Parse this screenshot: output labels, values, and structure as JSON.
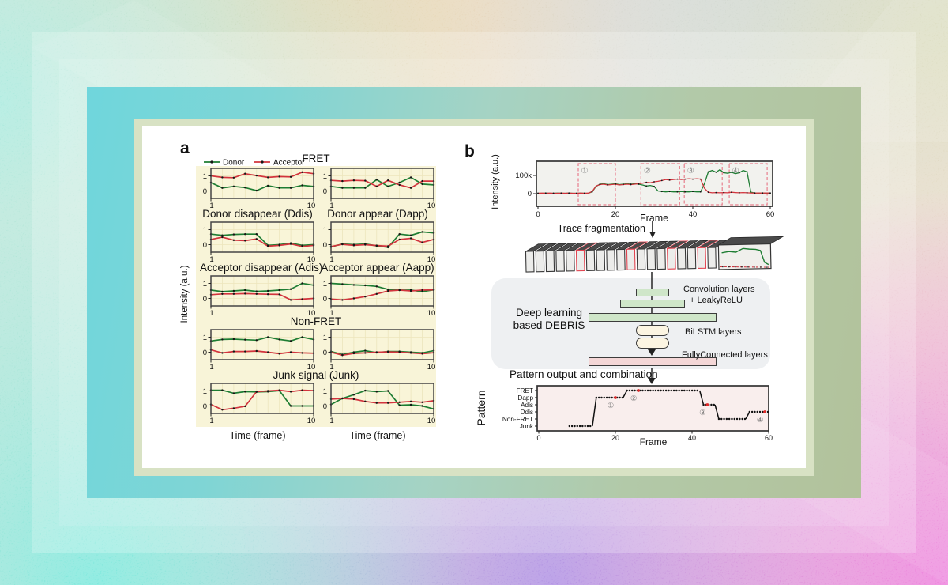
{
  "colors": {
    "donor_green": "#1e7d33",
    "acceptor_red": "#d2343d",
    "cream_bg": "#f8f4d8",
    "trace_bg": "#f2f2ee",
    "pattern_bg": "#f9eeed",
    "box_pink": "#e87f8d",
    "marker_black": "#151515",
    "red_dot": "#e02828"
  },
  "panel_a": {
    "label": "a",
    "legend": {
      "donor": "Donor",
      "acceptor": "Acceptor"
    },
    "ylabel": "Intensity (a.u.)",
    "xlabel": "Time (frame)",
    "title_fret": "FRET",
    "titles": {
      "ddis": "Donor disappear (Ddis)",
      "dapp": "Donor appear (Dapp)",
      "adis": "Acceptor disappear (Adis)",
      "aapp": "Acceptor appear (Aapp)",
      "nonfret": "Non-FRET",
      "junk": "Junk signal (Junk)"
    }
  },
  "panel_b": {
    "label": "b",
    "trace_ylabel": "Intensity (a.u.)",
    "trace_xlabel": "Frame",
    "frag_label": "Trace fragmentation",
    "dl": {
      "name_line1": "Deep learning",
      "name_line2": "based DEBRIS",
      "conv": "Convolution layers",
      "leaky": "+ LeakyReLU",
      "bilstm": "BiLSTM layers",
      "fc": "FullyConnected layers"
    },
    "pattern_caption": "Pattern output and combination",
    "fragment_stack": {
      "cards": 19,
      "red_highlighted_cards": [
        6,
        11,
        15,
        18
      ]
    }
  },
  "chart_data": [
    {
      "id": "fret_left",
      "type": "line",
      "group": "panel_a_mini",
      "title": "FRET",
      "x": [
        1,
        2,
        3,
        4,
        5,
        6,
        7,
        8,
        9,
        10
      ],
      "xticks": [
        "1",
        "10"
      ],
      "yticks": [
        "0",
        "1"
      ],
      "ylim": [
        -0.5,
        1.5
      ],
      "series": [
        {
          "name": "Donor",
          "color": "#1e7d33",
          "values": [
            0.55,
            0.2,
            0.3,
            0.22,
            0.02,
            0.35,
            0.2,
            0.2,
            0.37,
            0.3
          ]
        },
        {
          "name": "Acceptor",
          "color": "#d2343d",
          "values": [
            1.0,
            0.9,
            0.88,
            1.15,
            1.02,
            0.9,
            0.95,
            0.93,
            1.25,
            1.15
          ]
        }
      ]
    },
    {
      "id": "fret_right",
      "type": "line",
      "group": "panel_a_mini",
      "title": "FRET",
      "x": [
        1,
        2,
        3,
        4,
        5,
        6,
        7,
        8,
        9,
        10
      ],
      "xticks": [
        "1",
        "10"
      ],
      "yticks": [
        "0",
        "1"
      ],
      "ylim": [
        -0.5,
        1.5
      ],
      "series": [
        {
          "name": "Donor",
          "color": "#1e7d33",
          "values": [
            0.3,
            0.2,
            0.2,
            0.2,
            0.75,
            0.3,
            0.55,
            0.9,
            0.45,
            0.4
          ]
        },
        {
          "name": "Acceptor",
          "color": "#d2343d",
          "values": [
            0.7,
            0.65,
            0.7,
            0.68,
            0.3,
            0.7,
            0.4,
            0.2,
            0.65,
            0.65
          ]
        }
      ]
    },
    {
      "id": "ddis",
      "type": "line",
      "group": "panel_a_mini",
      "title": "Donor disappear (Ddis)",
      "x": [
        1,
        2,
        3,
        4,
        5,
        6,
        7,
        8,
        9,
        10
      ],
      "xticks": [
        "1",
        "10"
      ],
      "yticks": [
        "0",
        "1"
      ],
      "ylim": [
        -0.5,
        1.5
      ],
      "series": [
        {
          "name": "Donor",
          "color": "#1e7d33",
          "values": [
            0.7,
            0.62,
            0.68,
            0.7,
            0.7,
            -0.05,
            0.0,
            0.1,
            -0.05,
            0.0
          ]
        },
        {
          "name": "Acceptor",
          "color": "#d2343d",
          "values": [
            0.35,
            0.5,
            0.3,
            0.27,
            0.38,
            -0.1,
            -0.05,
            0.05,
            -0.12,
            -0.05
          ]
        }
      ]
    },
    {
      "id": "dapp",
      "type": "line",
      "group": "panel_a_mini",
      "title": "Donor appear (Dapp)",
      "x": [
        1,
        2,
        3,
        4,
        5,
        6,
        7,
        8,
        9,
        10
      ],
      "xticks": [
        "1",
        "10"
      ],
      "yticks": [
        "0",
        "1"
      ],
      "ylim": [
        -0.5,
        1.5
      ],
      "series": [
        {
          "name": "Donor",
          "color": "#1e7d33",
          "values": [
            -0.15,
            0.05,
            0.0,
            0.05,
            -0.08,
            -0.18,
            0.7,
            0.62,
            0.85,
            0.78
          ]
        },
        {
          "name": "Acceptor",
          "color": "#d2343d",
          "values": [
            -0.12,
            0.02,
            -0.05,
            0.0,
            -0.06,
            -0.1,
            0.35,
            0.42,
            0.15,
            0.35
          ]
        }
      ]
    },
    {
      "id": "adis",
      "type": "line",
      "group": "panel_a_mini",
      "title": "Acceptor disappear (Adis)",
      "x": [
        1,
        2,
        3,
        4,
        5,
        6,
        7,
        8,
        9,
        10
      ],
      "xticks": [
        "1",
        "10"
      ],
      "yticks": [
        "0",
        "1"
      ],
      "ylim": [
        -0.5,
        1.5
      ],
      "series": [
        {
          "name": "Donor",
          "color": "#1e7d33",
          "values": [
            0.55,
            0.45,
            0.5,
            0.55,
            0.47,
            0.5,
            0.55,
            0.62,
            1.0,
            0.88
          ]
        },
        {
          "name": "Acceptor",
          "color": "#d2343d",
          "values": [
            0.25,
            0.3,
            0.3,
            0.32,
            0.3,
            0.28,
            0.27,
            -0.1,
            -0.05,
            0.0
          ]
        }
      ]
    },
    {
      "id": "aapp",
      "type": "line",
      "group": "panel_a_mini",
      "title": "Acceptor appear (Aapp)",
      "x": [
        1,
        2,
        3,
        4,
        5,
        6,
        7,
        8,
        9,
        10
      ],
      "xticks": [
        "1",
        "10"
      ],
      "yticks": [
        "0",
        "1"
      ],
      "ylim": [
        -0.5,
        1.5
      ],
      "series": [
        {
          "name": "Donor",
          "color": "#1e7d33",
          "values": [
            1.0,
            0.95,
            0.9,
            0.87,
            0.8,
            0.6,
            0.55,
            0.55,
            0.45,
            0.57
          ]
        },
        {
          "name": "Acceptor",
          "color": "#d2343d",
          "values": [
            -0.05,
            -0.1,
            0.0,
            0.12,
            0.3,
            0.5,
            0.55,
            0.5,
            0.55,
            0.57
          ]
        }
      ]
    },
    {
      "id": "nonfret_left",
      "type": "line",
      "group": "panel_a_mini",
      "title": "Non-FRET",
      "x": [
        1,
        2,
        3,
        4,
        5,
        6,
        7,
        8,
        9,
        10
      ],
      "xticks": [
        "1",
        "10"
      ],
      "yticks": [
        "0",
        "1"
      ],
      "ylim": [
        -0.5,
        1.5
      ],
      "series": [
        {
          "name": "Donor",
          "color": "#1e7d33",
          "values": [
            0.75,
            0.85,
            0.87,
            0.83,
            0.8,
            1.0,
            0.85,
            0.75,
            1.0,
            0.85
          ]
        },
        {
          "name": "Acceptor",
          "color": "#d2343d",
          "values": [
            0.15,
            -0.05,
            0.05,
            0.05,
            0.08,
            0.0,
            -0.1,
            0.0,
            -0.05,
            -0.07
          ]
        }
      ]
    },
    {
      "id": "nonfret_right",
      "type": "line",
      "group": "panel_a_mini",
      "title": "Non-FRET",
      "x": [
        1,
        2,
        3,
        4,
        5,
        6,
        7,
        8,
        9,
        10
      ],
      "xticks": [
        "1",
        "10"
      ],
      "yticks": [
        "0",
        "1"
      ],
      "ylim": [
        -0.5,
        1.5
      ],
      "series": [
        {
          "name": "Donor",
          "color": "#1e7d33",
          "values": [
            0.05,
            -0.15,
            0.0,
            0.1,
            -0.03,
            0.05,
            0.05,
            0.0,
            -0.05,
            0.1
          ]
        },
        {
          "name": "Acceptor",
          "color": "#d2343d",
          "values": [
            0.0,
            -0.2,
            -0.08,
            -0.05,
            0.0,
            0.02,
            0.0,
            -0.05,
            -0.1,
            -0.03
          ]
        }
      ]
    },
    {
      "id": "junk_left",
      "type": "line",
      "group": "panel_a_mini",
      "title": "Junk signal (Junk)",
      "x": [
        1,
        2,
        3,
        4,
        5,
        6,
        7,
        8,
        9,
        10
      ],
      "xticks": [
        "1",
        "10"
      ],
      "yticks": [
        "0",
        "1"
      ],
      "ylim": [
        -0.5,
        1.5
      ],
      "series": [
        {
          "name": "Donor",
          "color": "#1e7d33",
          "values": [
            1.05,
            1.05,
            0.85,
            0.95,
            0.93,
            0.95,
            1.02,
            0.0,
            0.0,
            0.0
          ]
        },
        {
          "name": "Acceptor",
          "color": "#d2343d",
          "values": [
            0.1,
            -0.25,
            -0.15,
            -0.02,
            0.95,
            1.0,
            1.05,
            0.95,
            1.05,
            1.02
          ]
        }
      ]
    },
    {
      "id": "junk_right",
      "type": "line",
      "group": "panel_a_mini",
      "title": "Junk signal (Junk)",
      "x": [
        1,
        2,
        3,
        4,
        5,
        6,
        7,
        8,
        9,
        10
      ],
      "xticks": [
        "1",
        "10"
      ],
      "yticks": [
        "0",
        "1"
      ],
      "ylim": [
        -0.5,
        1.5
      ],
      "series": [
        {
          "name": "Donor",
          "color": "#1e7d33",
          "values": [
            0.1,
            0.5,
            0.75,
            1.02,
            0.95,
            1.0,
            0.05,
            0.08,
            0.0,
            -0.2
          ]
        },
        {
          "name": "Acceptor",
          "color": "#d2343d",
          "values": [
            0.45,
            0.5,
            0.45,
            0.3,
            0.2,
            0.2,
            0.25,
            0.3,
            0.25,
            0.35
          ]
        }
      ]
    },
    {
      "id": "b_trace",
      "type": "line",
      "group": "panel_b",
      "title": "",
      "ylabel": "Intensity (a.u.)",
      "xlabel": "Frame",
      "xticks": [
        0,
        20,
        40,
        60
      ],
      "ytick_labels": [
        "100k",
        "0"
      ],
      "xlim": [
        0,
        60
      ],
      "ylim_k": [
        -8,
        145
      ],
      "series": [
        {
          "name": "Donor",
          "color": "#1e7d33",
          "values_k": [
            2,
            2,
            3,
            2,
            2,
            3,
            2,
            2,
            3,
            2,
            2,
            3,
            2,
            2,
            10,
            40,
            52,
            55,
            50,
            52,
            55,
            50,
            52,
            55,
            52,
            55,
            52,
            48,
            42,
            45,
            40,
            15,
            12,
            10,
            12,
            10,
            10,
            12,
            10,
            10,
            12,
            10,
            10,
            55,
            120,
            128,
            118,
            132,
            115,
            112,
            118,
            110,
            115,
            128,
            120,
            8,
            4,
            3,
            4,
            3,
            3
          ]
        },
        {
          "name": "Acceptor",
          "color": "#d2343d",
          "values_k": [
            2,
            3,
            2,
            3,
            2,
            2,
            3,
            2,
            3,
            2,
            2,
            3,
            2,
            3,
            12,
            42,
            50,
            52,
            48,
            50,
            52,
            48,
            50,
            52,
            50,
            52,
            55,
            58,
            62,
            60,
            65,
            68,
            72,
            78,
            75,
            78,
            80,
            78,
            80,
            82,
            80,
            82,
            80,
            30,
            8,
            5,
            6,
            5,
            6,
            5,
            8,
            6,
            5,
            6,
            5,
            4,
            3,
            4,
            3,
            4,
            3
          ]
        }
      ],
      "fragment_boxes": [
        {
          "label": "①",
          "x0": 10.4,
          "x1": 20.0
        },
        {
          "label": "②",
          "x0": 26.6,
          "x1": 36.6
        },
        {
          "label": "③",
          "x0": 37.8,
          "x1": 47.6
        },
        {
          "label": "④",
          "x0": 49.4,
          "x1": 59.2
        }
      ]
    },
    {
      "id": "b_pattern",
      "type": "step",
      "group": "panel_b",
      "ylabel": "Pattern",
      "xlabel": "Frame",
      "levels": [
        "FRET",
        "Dapp",
        "Adis",
        "Ddis",
        "Non-FRET",
        "Junk"
      ],
      "xticks": [
        0,
        20,
        40,
        60
      ],
      "xlim": [
        0,
        60
      ],
      "segments": [
        {
          "level": "Junk",
          "from": 8,
          "to": 14
        },
        {
          "level": "Dapp",
          "from": 15,
          "to": 22
        },
        {
          "level": "FRET",
          "from": 23,
          "to": 42
        },
        {
          "level": "Adis",
          "from": 43,
          "to": 46
        },
        {
          "level": "Non-FRET",
          "from": 47,
          "to": 54
        },
        {
          "level": "Ddis",
          "from": 55,
          "to": 60
        }
      ],
      "markers": [
        {
          "label": "①",
          "x": 20,
          "level": "Dapp"
        },
        {
          "label": "②",
          "x": 26,
          "level": "FRET"
        },
        {
          "label": "③",
          "x": 44,
          "level": "Adis"
        },
        {
          "label": "④",
          "x": 59,
          "level": "Ddis"
        }
      ]
    }
  ]
}
